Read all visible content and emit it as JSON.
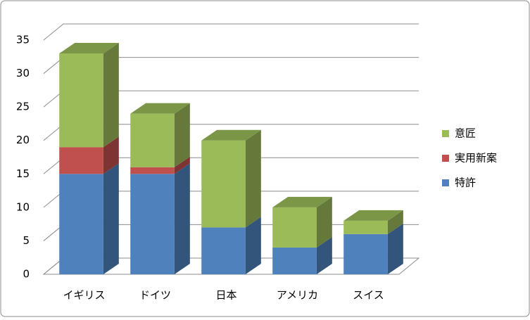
{
  "chart_data": {
    "type": "bar",
    "stacked": true,
    "categories": [
      "イギリス",
      "ドイツ",
      "日本",
      "アメリカ",
      "スイス"
    ],
    "series": [
      {
        "name": "特許",
        "color": "#4f81bd",
        "values": [
          15,
          15,
          7,
          4,
          6
        ]
      },
      {
        "name": "実用新案",
        "color": "#c0504d",
        "values": [
          4,
          1,
          0,
          0,
          0
        ]
      },
      {
        "name": "意匠",
        "color": "#9bbb59",
        "values": [
          14,
          8,
          13,
          6,
          2
        ]
      }
    ],
    "ylim": [
      0,
      35
    ],
    "yticks": [
      0,
      5,
      10,
      15,
      20,
      25,
      30,
      35
    ],
    "grid": true,
    "legend": "right"
  }
}
